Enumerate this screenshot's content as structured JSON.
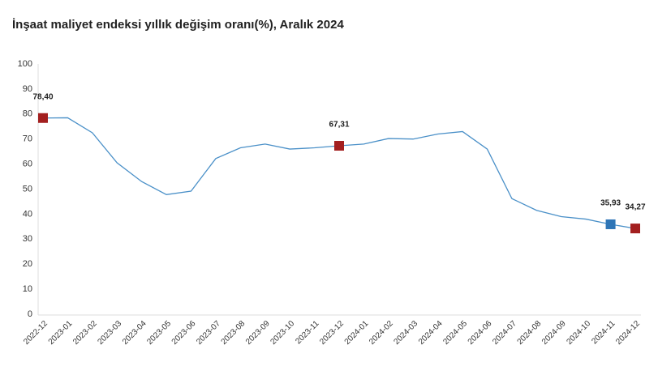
{
  "chart_data": {
    "type": "line",
    "title": "İnşaat maliyet endeksi yıllık değişim oranı(%), Aralık 2024",
    "categories": [
      "2022-12",
      "2023-01",
      "2023-02",
      "2023-03",
      "2023-04",
      "2023-05",
      "2023-06",
      "2023-07",
      "2023-08",
      "2023-09",
      "2023-10",
      "2023-11",
      "2023-12",
      "2024-01",
      "2024-02",
      "2024-03",
      "2024-04",
      "2024-05",
      "2024-06",
      "2024-07",
      "2024-08",
      "2024-09",
      "2024-10",
      "2024-11",
      "2024-12"
    ],
    "series": [
      {
        "color": "#4a90c8",
        "values": [
          78.4,
          78.5,
          72.5,
          60.5,
          53,
          47.8,
          49.2,
          62.2,
          66.5,
          68,
          66,
          66.5,
          67.31,
          68,
          70.2,
          70,
          72,
          73,
          66,
          46.2,
          41.5,
          39,
          38,
          35.93,
          34.27
        ],
        "value_labels": [
          "78,40",
          null,
          null,
          null,
          null,
          null,
          null,
          null,
          null,
          null,
          null,
          null,
          "67,31",
          null,
          null,
          null,
          null,
          null,
          null,
          null,
          null,
          null,
          null,
          "35,93",
          "34,27"
        ],
        "marker_colors": [
          "#a31f1f",
          null,
          null,
          null,
          null,
          null,
          null,
          null,
          null,
          null,
          null,
          null,
          "#a31f1f",
          null,
          null,
          null,
          null,
          null,
          null,
          null,
          null,
          null,
          null,
          "#2e75b6",
          "#a31f1f"
        ]
      }
    ],
    "ylim": [
      0,
      100
    ],
    "yticks": [
      0,
      10,
      20,
      30,
      40,
      50,
      60,
      70,
      80,
      90,
      100
    ],
    "grid": false
  }
}
